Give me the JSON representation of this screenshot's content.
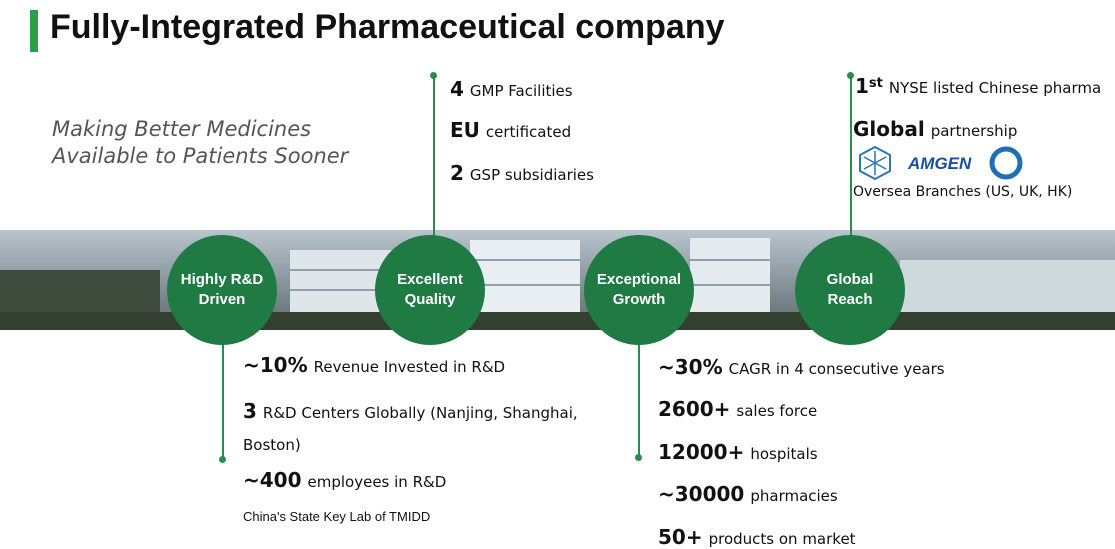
{
  "header": {
    "title": "Fully-Integrated Pharmaceutical company"
  },
  "tagline": [
    "Making Better Medicines",
    "Available to Patients Sooner"
  ],
  "pillars": [
    {
      "lines": [
        "Highly R&D",
        "Driven"
      ]
    },
    {
      "lines": [
        "Excellent",
        "Quality"
      ]
    },
    {
      "lines": [
        "Exceptional",
        "Growth"
      ]
    },
    {
      "lines": [
        "Global",
        "Reach"
      ]
    }
  ],
  "quality": [
    {
      "bold": "4",
      "text": "GMP Facilities"
    },
    {
      "bold": "EU",
      "text": "certificated"
    },
    {
      "bold": "2",
      "text": "GSP subsidiaries"
    }
  ],
  "global": {
    "first": {
      "bold": "1",
      "sup": "st",
      "text": "NYSE listed Chinese pharma"
    },
    "partnership": {
      "bold": "Global",
      "text": "partnership"
    },
    "logo_text": "AMGEN",
    "branches": "Oversea Branches (US, UK, HK)"
  },
  "rnd": [
    {
      "bold": "~10%",
      "text": "Revenue Invested in R&D"
    },
    {
      "bold": "3",
      "text": "R&D Centers Globally (Nanjing, Shanghai, Boston)"
    },
    {
      "bold": "~400",
      "text": "employees in R&D"
    },
    {
      "text": "China's State Key Lab of TMIDD"
    }
  ],
  "growth": [
    {
      "bold": "~30%",
      "text": "CAGR in 4 consecutive years"
    },
    {
      "bold": "2600+",
      "text": "sales force"
    },
    {
      "bold": "12000+",
      "text": "hospitals"
    },
    {
      "bold": "~30000",
      "text": "pharmacies"
    },
    {
      "bold": "50+",
      "text": "products on market"
    }
  ]
}
